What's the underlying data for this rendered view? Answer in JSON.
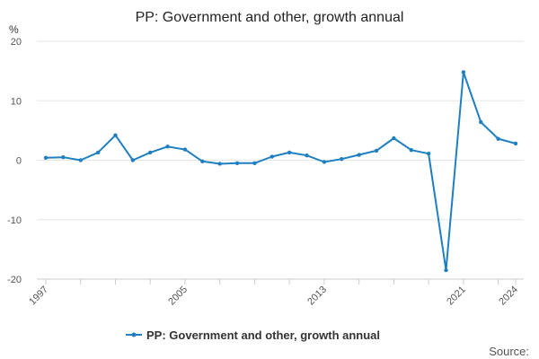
{
  "chart_data": {
    "type": "line",
    "title": "PP: Government and other, growth annual",
    "unit_label": "%",
    "ylim": [
      -20,
      20
    ],
    "yticks": [
      20,
      10,
      0,
      -10,
      -20
    ],
    "xlim": [
      1997,
      2024
    ],
    "xticks_labeled": [
      1997,
      2005,
      2013,
      2021,
      2024
    ],
    "xticks_minor": [
      1997,
      1999,
      2001,
      2003,
      2005,
      2007,
      2009,
      2011,
      2013,
      2015,
      2017,
      2019,
      2021,
      2023,
      2024
    ],
    "grid": true,
    "legend_position": "bottom",
    "series": [
      {
        "name": "PP: Government and other, growth annual",
        "color": "#1f7fc0",
        "x": [
          1997,
          1998,
          1999,
          2000,
          2001,
          2002,
          2003,
          2004,
          2005,
          2006,
          2007,
          2008,
          2009,
          2010,
          2011,
          2012,
          2013,
          2014,
          2015,
          2016,
          2017,
          2018,
          2019,
          2020,
          2021,
          2022,
          2023,
          2024
        ],
        "values": [
          0.4,
          0.5,
          0.0,
          1.3,
          4.2,
          0.0,
          1.3,
          2.3,
          1.8,
          -0.2,
          -0.6,
          -0.5,
          -0.5,
          0.6,
          1.3,
          0.8,
          -0.3,
          0.2,
          0.9,
          1.6,
          3.7,
          1.7,
          1.1,
          -18.5,
          14.8,
          6.4,
          3.6,
          2.8
        ]
      }
    ],
    "source_label": "Source:"
  }
}
